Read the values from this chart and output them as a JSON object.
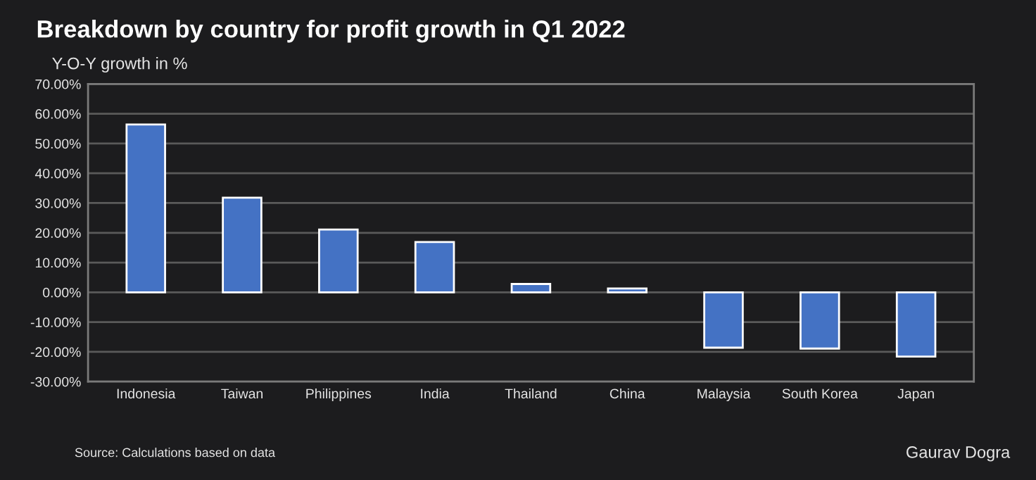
{
  "chart_data": {
    "type": "bar",
    "title": "Breakdown by country for profit growth in Q1 2022",
    "subtitle": "Y-O-Y growth in %",
    "categories": [
      "Indonesia",
      "Taiwan",
      "Philippines",
      "India",
      "Thailand",
      "China",
      "Malaysia",
      "South Korea",
      "Japan"
    ],
    "values": [
      56.4,
      31.8,
      21.1,
      16.9,
      2.8,
      1.3,
      -18.6,
      -18.9,
      -21.6
    ],
    "color": "#4472c4",
    "ylim": [
      -30,
      70
    ],
    "yticks": [
      {
        "value": -30,
        "label": "-30.00%"
      },
      {
        "value": -20,
        "label": "-20.00%"
      },
      {
        "value": -10,
        "label": "-10.00%"
      },
      {
        "value": 0,
        "label": "0.00%"
      },
      {
        "value": 10,
        "label": "10.00%"
      },
      {
        "value": 20,
        "label": "20.00%"
      },
      {
        "value": 30,
        "label": "30.00%"
      },
      {
        "value": 40,
        "label": "40.00%"
      },
      {
        "value": 50,
        "label": "50.00%"
      },
      {
        "value": 60,
        "label": "60.00%"
      },
      {
        "value": 70,
        "label": "70.00%"
      }
    ],
    "grid": "y",
    "annotations": [
      "Source: Calculations based on data",
      "Gaurav Dogra"
    ]
  }
}
